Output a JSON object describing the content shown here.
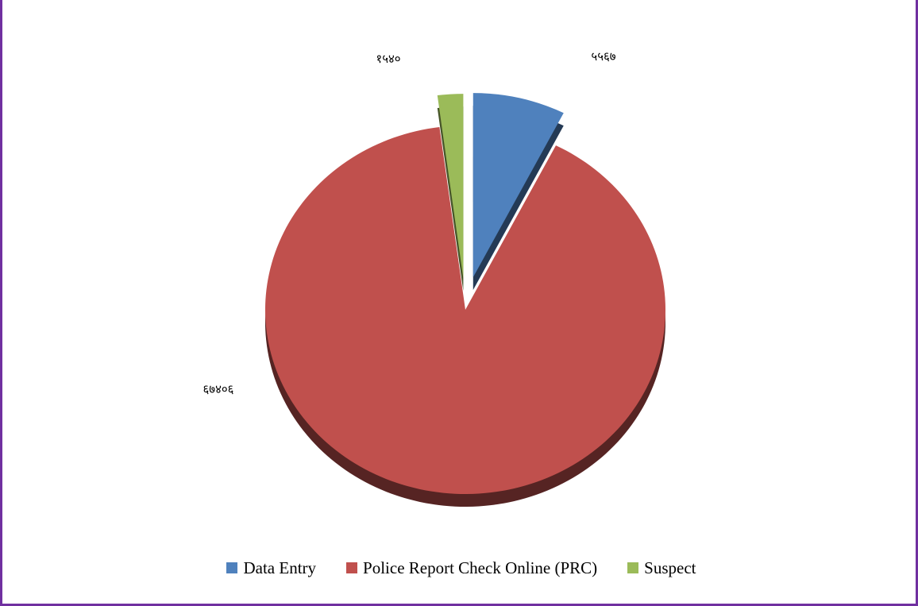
{
  "chart_data": {
    "type": "pie",
    "title": "",
    "exploded": true,
    "three_d": true,
    "legend_position": "bottom",
    "slices": [
      {
        "name": "Data Entry",
        "value": 5567,
        "label": "५५६७",
        "color": "#4f81bd"
      },
      {
        "name": "Police Report Check Online (PRC)",
        "value": 67406,
        "label": "६७४०६",
        "color": "#c0504d"
      },
      {
        "name": "Suspect",
        "value": 1540,
        "label": "१५४०",
        "color": "#9bbb59"
      }
    ]
  },
  "colors": {
    "frame_border": "#7030a0",
    "background": "#ffffff"
  }
}
